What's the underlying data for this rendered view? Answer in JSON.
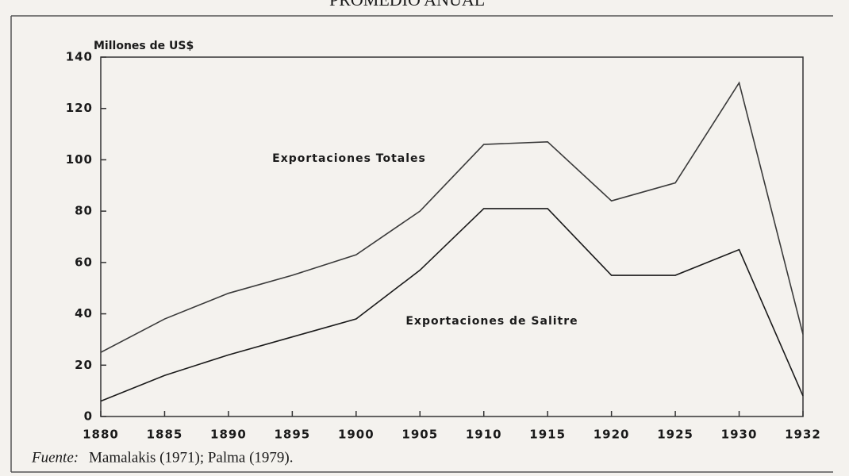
{
  "chart_data": {
    "type": "line",
    "title": "PROMEDIO ANUAL",
    "ylabel": "Millones de US$",
    "categories": [
      "1880",
      "1885",
      "1890",
      "1895",
      "1900",
      "1905",
      "1910",
      "1915",
      "1920",
      "1925",
      "1930",
      "1932"
    ],
    "series": [
      {
        "name": "Exportaciones Totales",
        "color": "#3a3a3a",
        "values": [
          25,
          38,
          48,
          55,
          63,
          80,
          106,
          107,
          84,
          91,
          130,
          32
        ]
      },
      {
        "name": "Exportaciones de Salitre",
        "color": "#1a1a1a",
        "values": [
          6,
          16,
          24,
          31,
          38,
          57,
          81,
          81,
          55,
          55,
          65,
          8
        ]
      }
    ],
    "ylim": [
      0,
      140
    ],
    "yticks": [
      0,
      20,
      40,
      60,
      80,
      100,
      120,
      140
    ],
    "grid": false,
    "source_label": "Fuente:",
    "source": "Mamalakis (1971); Palma (1979)."
  }
}
